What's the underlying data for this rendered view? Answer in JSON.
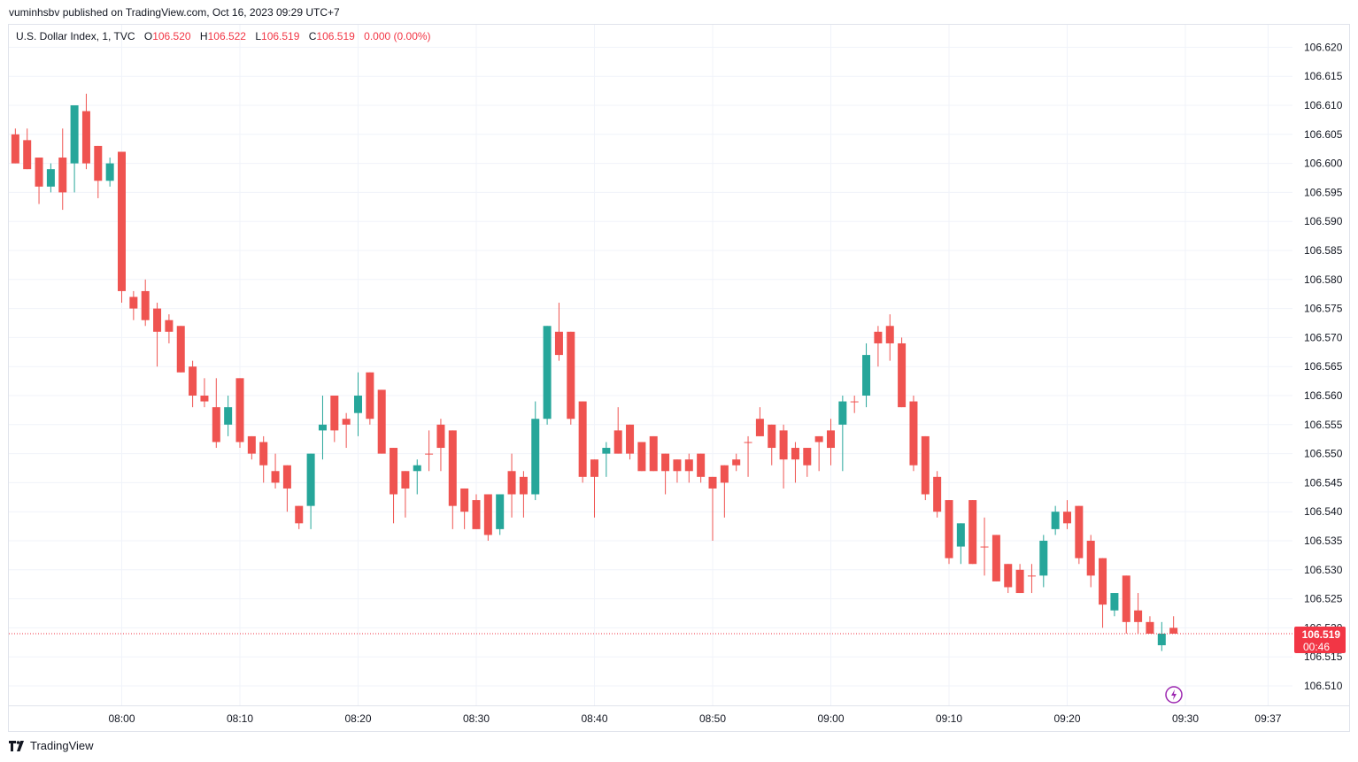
{
  "header": {
    "published_line": "vuminhsbv published on TradingView.com, Oct 16, 2023 09:29 UTC+7"
  },
  "legend": {
    "symbol": "U.S. Dollar Index, 1, TVC",
    "o_label": "O",
    "o_value": "106.520",
    "h_label": "H",
    "h_value": "106.522",
    "l_label": "L",
    "l_value": "106.519",
    "c_label": "C",
    "c_value": "106.519",
    "change": "0.000 (0.00%)"
  },
  "price_badge": {
    "price": "106.519",
    "countdown": "00:46"
  },
  "footer": {
    "brand": "TradingView",
    "logo_icon": "tradingview-logo-icon"
  },
  "colors": {
    "up": "#26a69a",
    "down": "#ef5350",
    "grid": "#f0f3fa",
    "axis_text": "#131722",
    "last_price": "#f23645",
    "lightning": "#9c27b0"
  },
  "chart_data": {
    "type": "candlestick",
    "symbol": "U.S. Dollar Index",
    "interval": "1",
    "exchange": "TVC",
    "ylim": [
      106.5075,
      106.6225
    ],
    "y_ticks": [
      "106.510",
      "106.515",
      "106.520",
      "106.525",
      "106.530",
      "106.535",
      "106.540",
      "106.545",
      "106.550",
      "106.555",
      "106.560",
      "106.565",
      "106.570",
      "106.575",
      "106.580",
      "106.585",
      "106.590",
      "106.595",
      "106.600",
      "106.605",
      "106.610",
      "106.615",
      "106.620"
    ],
    "x_ticks": [
      "08:00",
      "08:10",
      "08:20",
      "08:30",
      "08:40",
      "08:50",
      "09:00",
      "09:10",
      "09:20",
      "09:30",
      "09:37"
    ],
    "x_range": [
      "07:51",
      "09:38"
    ],
    "grid": true,
    "last_price": 106.519,
    "candles": [
      {
        "t": "07:51",
        "o": 106.605,
        "h": 106.606,
        "l": 106.6,
        "c": 106.6
      },
      {
        "t": "07:52",
        "o": 106.604,
        "h": 106.606,
        "l": 106.599,
        "c": 106.599
      },
      {
        "t": "07:53",
        "o": 106.601,
        "h": 106.601,
        "l": 106.593,
        "c": 106.596
      },
      {
        "t": "07:54",
        "o": 106.596,
        "h": 106.6,
        "l": 106.595,
        "c": 106.599
      },
      {
        "t": "07:55",
        "o": 106.601,
        "h": 106.606,
        "l": 106.592,
        "c": 106.595
      },
      {
        "t": "07:56",
        "o": 106.6,
        "h": 106.61,
        "l": 106.595,
        "c": 106.61
      },
      {
        "t": "07:57",
        "o": 106.609,
        "h": 106.612,
        "l": 106.599,
        "c": 106.6
      },
      {
        "t": "07:58",
        "o": 106.603,
        "h": 106.603,
        "l": 106.594,
        "c": 106.597
      },
      {
        "t": "07:59",
        "o": 106.597,
        "h": 106.601,
        "l": 106.596,
        "c": 106.6
      },
      {
        "t": "08:00",
        "o": 106.602,
        "h": 106.602,
        "l": 106.576,
        "c": 106.578
      },
      {
        "t": "08:01",
        "o": 106.577,
        "h": 106.578,
        "l": 106.573,
        "c": 106.575
      },
      {
        "t": "08:02",
        "o": 106.578,
        "h": 106.58,
        "l": 106.572,
        "c": 106.573
      },
      {
        "t": "08:03",
        "o": 106.575,
        "h": 106.576,
        "l": 106.565,
        "c": 106.571
      },
      {
        "t": "08:04",
        "o": 106.573,
        "h": 106.574,
        "l": 106.569,
        "c": 106.571
      },
      {
        "t": "08:05",
        "o": 106.572,
        "h": 106.572,
        "l": 106.564,
        "c": 106.564
      },
      {
        "t": "08:06",
        "o": 106.565,
        "h": 106.566,
        "l": 106.558,
        "c": 106.56
      },
      {
        "t": "08:07",
        "o": 106.56,
        "h": 106.563,
        "l": 106.558,
        "c": 106.559
      },
      {
        "t": "08:08",
        "o": 106.558,
        "h": 106.563,
        "l": 106.551,
        "c": 106.552
      },
      {
        "t": "08:09",
        "o": 106.555,
        "h": 106.56,
        "l": 106.553,
        "c": 106.558
      },
      {
        "t": "08:10",
        "o": 106.563,
        "h": 106.563,
        "l": 106.551,
        "c": 106.552
      },
      {
        "t": "08:11",
        "o": 106.553,
        "h": 106.553,
        "l": 106.549,
        "c": 106.55
      },
      {
        "t": "08:12",
        "o": 106.552,
        "h": 106.553,
        "l": 106.545,
        "c": 106.548
      },
      {
        "t": "08:13",
        "o": 106.547,
        "h": 106.55,
        "l": 106.544,
        "c": 106.545
      },
      {
        "t": "08:14",
        "o": 106.548,
        "h": 106.548,
        "l": 106.54,
        "c": 106.544
      },
      {
        "t": "08:15",
        "o": 106.541,
        "h": 106.541,
        "l": 106.537,
        "c": 106.538
      },
      {
        "t": "08:16",
        "o": 106.541,
        "h": 106.55,
        "l": 106.537,
        "c": 106.55
      },
      {
        "t": "08:17",
        "o": 106.554,
        "h": 106.56,
        "l": 106.549,
        "c": 106.555
      },
      {
        "t": "08:18",
        "o": 106.56,
        "h": 106.56,
        "l": 106.552,
        "c": 106.554
      },
      {
        "t": "08:19",
        "o": 106.556,
        "h": 106.557,
        "l": 106.551,
        "c": 106.555
      },
      {
        "t": "08:20",
        "o": 106.557,
        "h": 106.564,
        "l": 106.553,
        "c": 106.56
      },
      {
        "t": "08:21",
        "o": 106.564,
        "h": 106.564,
        "l": 106.555,
        "c": 106.556
      },
      {
        "t": "08:22",
        "o": 106.561,
        "h": 106.561,
        "l": 106.55,
        "c": 106.55
      },
      {
        "t": "08:23",
        "o": 106.551,
        "h": 106.551,
        "l": 106.538,
        "c": 106.543
      },
      {
        "t": "08:24",
        "o": 106.547,
        "h": 106.547,
        "l": 106.539,
        "c": 106.544
      },
      {
        "t": "08:25",
        "o": 106.547,
        "h": 106.549,
        "l": 106.543,
        "c": 106.548
      },
      {
        "t": "08:26",
        "o": 106.55,
        "h": 106.554,
        "l": 106.547,
        "c": 106.55
      },
      {
        "t": "08:27",
        "o": 106.555,
        "h": 106.556,
        "l": 106.547,
        "c": 106.551
      },
      {
        "t": "08:28",
        "o": 106.554,
        "h": 106.554,
        "l": 106.537,
        "c": 106.541
      },
      {
        "t": "08:29",
        "o": 106.544,
        "h": 106.544,
        "l": 106.537,
        "c": 106.54
      },
      {
        "t": "08:30",
        "o": 106.542,
        "h": 106.543,
        "l": 106.537,
        "c": 106.537
      },
      {
        "t": "08:31",
        "o": 106.543,
        "h": 106.543,
        "l": 106.535,
        "c": 106.536
      },
      {
        "t": "08:32",
        "o": 106.537,
        "h": 106.543,
        "l": 106.536,
        "c": 106.543
      },
      {
        "t": "08:33",
        "o": 106.547,
        "h": 106.55,
        "l": 106.539,
        "c": 106.543
      },
      {
        "t": "08:34",
        "o": 106.546,
        "h": 106.547,
        "l": 106.539,
        "c": 106.543
      },
      {
        "t": "08:35",
        "o": 106.543,
        "h": 106.559,
        "l": 106.542,
        "c": 106.556
      },
      {
        "t": "08:36",
        "o": 106.556,
        "h": 106.572,
        "l": 106.555,
        "c": 106.572
      },
      {
        "t": "08:37",
        "o": 106.571,
        "h": 106.576,
        "l": 106.566,
        "c": 106.567
      },
      {
        "t": "08:38",
        "o": 106.571,
        "h": 106.571,
        "l": 106.555,
        "c": 106.556
      },
      {
        "t": "08:39",
        "o": 106.559,
        "h": 106.559,
        "l": 106.545,
        "c": 106.546
      },
      {
        "t": "08:40",
        "o": 106.549,
        "h": 106.549,
        "l": 106.539,
        "c": 106.546
      },
      {
        "t": "08:41",
        "o": 106.55,
        "h": 106.552,
        "l": 106.546,
        "c": 106.551
      },
      {
        "t": "08:42",
        "o": 106.554,
        "h": 106.558,
        "l": 106.55,
        "c": 106.55
      },
      {
        "t": "08:43",
        "o": 106.555,
        "h": 106.555,
        "l": 106.549,
        "c": 106.55
      },
      {
        "t": "08:44",
        "o": 106.552,
        "h": 106.552,
        "l": 106.547,
        "c": 106.547
      },
      {
        "t": "08:45",
        "o": 106.553,
        "h": 106.553,
        "l": 106.547,
        "c": 106.547
      },
      {
        "t": "08:46",
        "o": 106.55,
        "h": 106.55,
        "l": 106.543,
        "c": 106.547
      },
      {
        "t": "08:47",
        "o": 106.549,
        "h": 106.549,
        "l": 106.545,
        "c": 106.547
      },
      {
        "t": "08:48",
        "o": 106.549,
        "h": 106.55,
        "l": 106.545,
        "c": 106.547
      },
      {
        "t": "08:49",
        "o": 106.55,
        "h": 106.55,
        "l": 106.545,
        "c": 106.546
      },
      {
        "t": "08:50",
        "o": 106.546,
        "h": 106.546,
        "l": 106.535,
        "c": 106.544
      },
      {
        "t": "08:51",
        "o": 106.548,
        "h": 106.548,
        "l": 106.539,
        "c": 106.545
      },
      {
        "t": "08:52",
        "o": 106.549,
        "h": 106.55,
        "l": 106.547,
        "c": 106.548
      },
      {
        "t": "08:53",
        "o": 106.552,
        "h": 106.553,
        "l": 106.546,
        "c": 106.552
      },
      {
        "t": "08:54",
        "o": 106.556,
        "h": 106.558,
        "l": 106.553,
        "c": 106.553
      },
      {
        "t": "08:55",
        "o": 106.555,
        "h": 106.555,
        "l": 106.548,
        "c": 106.551
      },
      {
        "t": "08:56",
        "o": 106.554,
        "h": 106.555,
        "l": 106.544,
        "c": 106.549
      },
      {
        "t": "08:57",
        "o": 106.551,
        "h": 106.552,
        "l": 106.545,
        "c": 106.549
      },
      {
        "t": "08:58",
        "o": 106.551,
        "h": 106.551,
        "l": 106.546,
        "c": 106.548
      },
      {
        "t": "08:59",
        "o": 106.553,
        "h": 106.553,
        "l": 106.547,
        "c": 106.552
      },
      {
        "t": "09:00",
        "o": 106.554,
        "h": 106.556,
        "l": 106.548,
        "c": 106.551
      },
      {
        "t": "09:01",
        "o": 106.555,
        "h": 106.56,
        "l": 106.547,
        "c": 106.559
      },
      {
        "t": "09:02",
        "o": 106.559,
        "h": 106.56,
        "l": 106.557,
        "c": 106.559
      },
      {
        "t": "09:03",
        "o": 106.56,
        "h": 106.569,
        "l": 106.558,
        "c": 106.567
      },
      {
        "t": "09:04",
        "o": 106.571,
        "h": 106.572,
        "l": 106.565,
        "c": 106.569
      },
      {
        "t": "09:05",
        "o": 106.572,
        "h": 106.574,
        "l": 106.566,
        "c": 106.569
      },
      {
        "t": "09:06",
        "o": 106.569,
        "h": 106.57,
        "l": 106.558,
        "c": 106.558
      },
      {
        "t": "09:07",
        "o": 106.559,
        "h": 106.56,
        "l": 106.547,
        "c": 106.548
      },
      {
        "t": "09:08",
        "o": 106.553,
        "h": 106.553,
        "l": 106.542,
        "c": 106.543
      },
      {
        "t": "09:09",
        "o": 106.546,
        "h": 106.547,
        "l": 106.539,
        "c": 106.54
      },
      {
        "t": "09:10",
        "o": 106.542,
        "h": 106.542,
        "l": 106.531,
        "c": 106.532
      },
      {
        "t": "09:11",
        "o": 106.534,
        "h": 106.538,
        "l": 106.531,
        "c": 106.538
      },
      {
        "t": "09:12",
        "o": 106.542,
        "h": 106.542,
        "l": 106.531,
        "c": 106.531
      },
      {
        "t": "09:13",
        "o": 106.534,
        "h": 106.539,
        "l": 106.529,
        "c": 106.534
      },
      {
        "t": "09:14",
        "o": 106.536,
        "h": 106.536,
        "l": 106.528,
        "c": 106.528
      },
      {
        "t": "09:15",
        "o": 106.531,
        "h": 106.531,
        "l": 106.526,
        "c": 106.527
      },
      {
        "t": "09:16",
        "o": 106.53,
        "h": 106.531,
        "l": 106.526,
        "c": 106.526
      },
      {
        "t": "09:17",
        "o": 106.529,
        "h": 106.531,
        "l": 106.526,
        "c": 106.529
      },
      {
        "t": "09:18",
        "o": 106.529,
        "h": 106.536,
        "l": 106.527,
        "c": 106.535
      },
      {
        "t": "09:19",
        "o": 106.537,
        "h": 106.541,
        "l": 106.536,
        "c": 106.54
      },
      {
        "t": "09:20",
        "o": 106.54,
        "h": 106.542,
        "l": 106.537,
        "c": 106.538
      },
      {
        "t": "09:21",
        "o": 106.541,
        "h": 106.541,
        "l": 106.531,
        "c": 106.532
      },
      {
        "t": "09:22",
        "o": 106.535,
        "h": 106.536,
        "l": 106.527,
        "c": 106.529
      },
      {
        "t": "09:23",
        "o": 106.532,
        "h": 106.532,
        "l": 106.52,
        "c": 106.524
      },
      {
        "t": "09:24",
        "o": 106.523,
        "h": 106.526,
        "l": 106.522,
        "c": 106.526
      },
      {
        "t": "09:25",
        "o": 106.529,
        "h": 106.529,
        "l": 106.519,
        "c": 106.521
      },
      {
        "t": "09:26",
        "o": 106.523,
        "h": 106.526,
        "l": 106.519,
        "c": 106.521
      },
      {
        "t": "09:27",
        "o": 106.521,
        "h": 106.522,
        "l": 106.519,
        "c": 106.519
      },
      {
        "t": "09:28",
        "o": 106.517,
        "h": 106.521,
        "l": 106.516,
        "c": 106.519
      },
      {
        "t": "09:29",
        "o": 106.52,
        "h": 106.522,
        "l": 106.519,
        "c": 106.519
      }
    ]
  }
}
